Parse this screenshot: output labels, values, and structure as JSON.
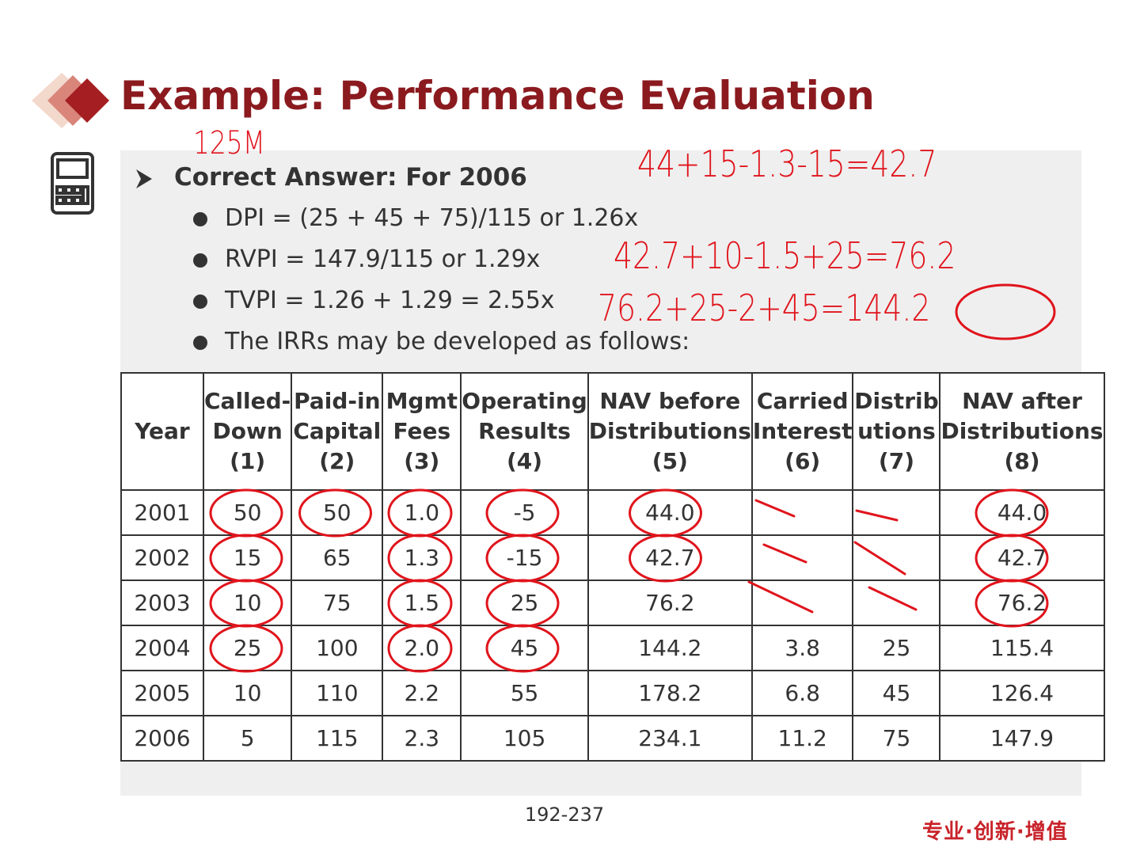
{
  "title": "Example: Performance Evaluation",
  "answer": {
    "heading": "Correct Answer: For 2006",
    "bullets": [
      "DPI = (25 + 45 + 75)/115 or 1.26x",
      "RVPI = 147.9/115 or 1.29x",
      "TVPI = 1.26 + 1.29 = 2.55x",
      "The IRRs may be developed as follows:"
    ]
  },
  "annotations": [
    "125M",
    "44+15-1.3-15=42.7",
    "42.7+10-1.5+25=76.2",
    "76.2+25-2+45=144.2"
  ],
  "table": {
    "header": [
      [
        "Year"
      ],
      [
        "Called-",
        "Down",
        "(1)"
      ],
      [
        "Paid-in",
        "Capital",
        "(2)"
      ],
      [
        "Mgmt",
        "Fees",
        "(3)"
      ],
      [
        "Operating",
        "Results",
        "(4)"
      ],
      [
        "NAV before",
        "Distributions",
        "(5)"
      ],
      [
        "Carried",
        "Interest",
        "(6)"
      ],
      [
        "Distrib",
        "utions",
        "(7)"
      ],
      [
        "NAV after",
        "Distributions",
        "(8)"
      ]
    ],
    "rows": [
      [
        "2001",
        "50",
        "50",
        "1.0",
        "-5",
        "44.0",
        null,
        null,
        "44.0"
      ],
      [
        "2002",
        "15",
        "65",
        "1.3",
        "-15",
        "42.7",
        null,
        null,
        "42.7"
      ],
      [
        "2003",
        "10",
        "75",
        "1.5",
        "25",
        "76.2",
        null,
        null,
        "76.2"
      ],
      [
        "2004",
        "25",
        "100",
        "2.0",
        "45",
        "144.2",
        "3.8",
        "25",
        "115.4"
      ],
      [
        "2005",
        "10",
        "110",
        "2.2",
        "55",
        "178.2",
        "6.8",
        "45",
        "126.4"
      ],
      [
        "2006",
        "5",
        "115",
        "2.3",
        "105",
        "234.1",
        "11.2",
        "75",
        "147.9"
      ]
    ]
  },
  "footer": {
    "page": "192-237",
    "logo": "专业·创新·增值"
  }
}
